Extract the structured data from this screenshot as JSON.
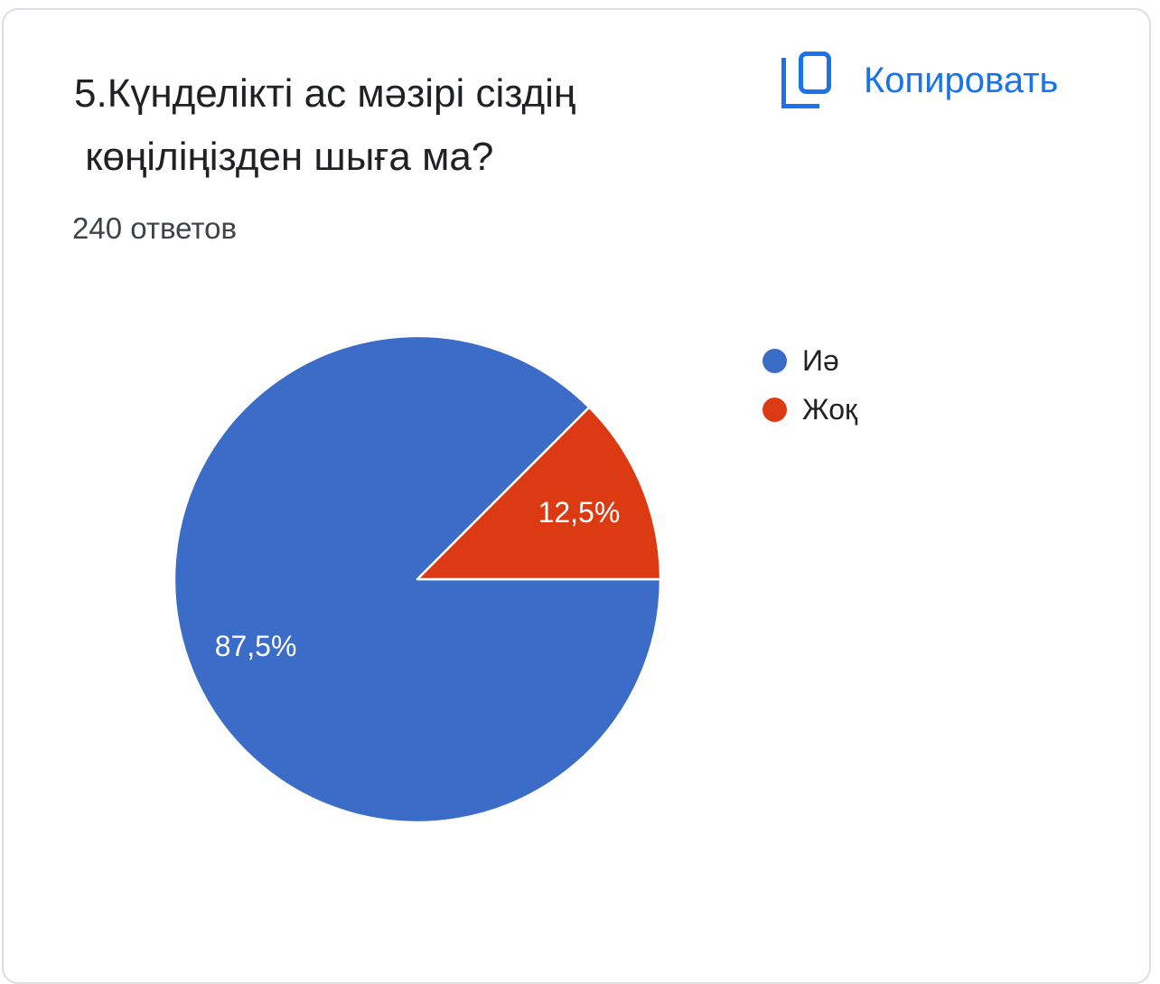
{
  "colors": {
    "accent_blue": "#1a73e8",
    "title_text": "#202124",
    "muted_text": "#3f4246"
  },
  "card": {
    "question_title": "5.Күнделікті ас мәзірі сіздің\n көңіліңізден шыға ма?",
    "responses_count": "240 ответов",
    "copy_button_label": "Копировать"
  },
  "chart_data": {
    "type": "pie",
    "title": "5.Күнделікті ас мәзірі сіздің көңіліңізден шыға ма?",
    "subtitle": "240 ответов",
    "total_responses": 240,
    "legend_position": "right",
    "start_angle": "3-oclock",
    "direction": "clockwise",
    "labels_inside": true,
    "label_color": "#ffffff",
    "slices": [
      {
        "label": "Иә",
        "value_pct": 87.5,
        "pct_display": "87,5%",
        "color": "#3b6cc8"
      },
      {
        "label": "Жоқ",
        "value_pct": 12.5,
        "pct_display": "12,5%",
        "color": "#db3a12"
      }
    ]
  }
}
